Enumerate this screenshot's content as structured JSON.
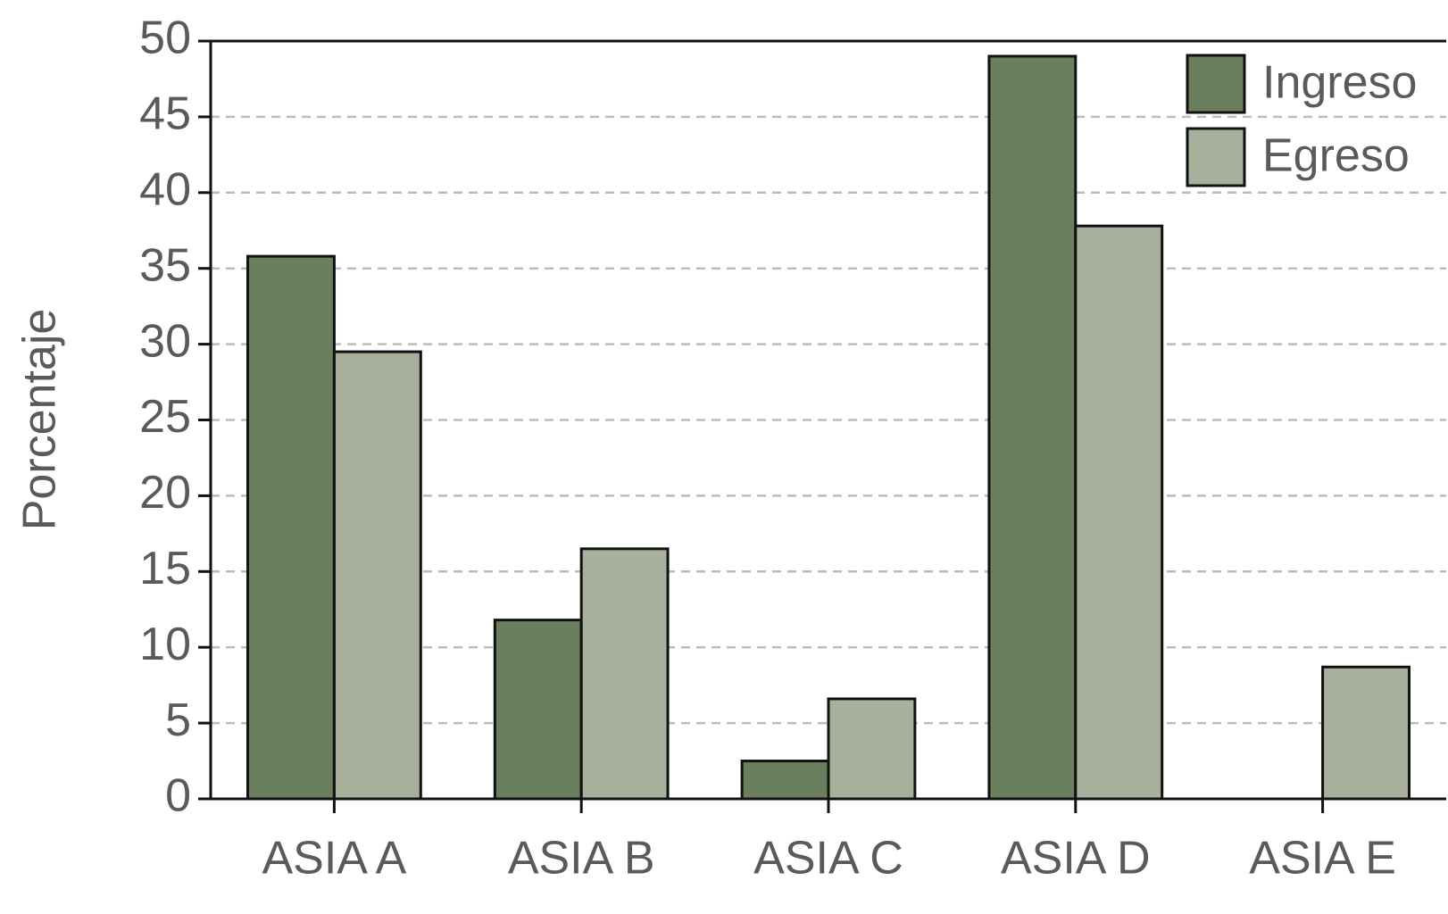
{
  "chart_data": {
    "type": "bar",
    "y_label": "Porcentaje",
    "categories": [
      "ASIA A",
      "ASIA B",
      "ASIA C",
      "ASIA D",
      "ASIA E"
    ],
    "series": [
      {
        "name": "Ingreso",
        "color": "#6a7f5e",
        "values": [
          35.8,
          11.8,
          2.5,
          49.0,
          null
        ]
      },
      {
        "name": "Egreso",
        "color": "#a7b09b",
        "values": [
          29.5,
          16.5,
          6.6,
          37.8,
          8.7
        ]
      }
    ],
    "ylim": [
      0,
      50
    ],
    "yticks": [
      0,
      5,
      10,
      15,
      20,
      25,
      30,
      35,
      40,
      45,
      50
    ],
    "grid": true,
    "legend": "upper right"
  }
}
